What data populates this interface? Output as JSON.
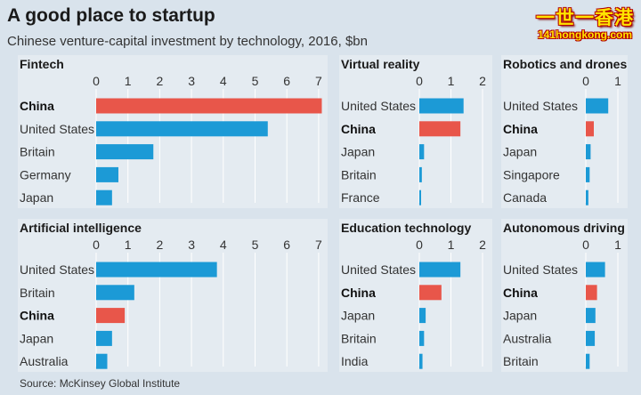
{
  "title": "A good place to startup",
  "subtitle": "Chinese venture-capital investment by technology, 2016, $bn",
  "source": "Source: McKinsey Global Institute",
  "watermark": {
    "title": "一世一香港",
    "url": "141hongkong.com"
  },
  "colors": {
    "background": "#d9e3ec",
    "panel": "#e4ebf1",
    "grid": "#ffffff",
    "bar_blue": "#1c9ad6",
    "bar_red": "#e8564a",
    "text": "#333333"
  },
  "chart_data": [
    {
      "type": "bar",
      "orientation": "horizontal",
      "title": "Fintech",
      "xlim": [
        0,
        7.1
      ],
      "ticks": [
        0,
        1,
        2,
        3,
        4,
        5,
        6,
        7
      ],
      "categories": [
        "China",
        "United States",
        "Britain",
        "Germany",
        "Japan"
      ],
      "values": [
        7.1,
        5.4,
        1.8,
        0.7,
        0.5
      ],
      "highlight": "China"
    },
    {
      "type": "bar",
      "orientation": "horizontal",
      "title": "Virtual reality",
      "xlim": [
        0,
        2
      ],
      "ticks": [
        0,
        1,
        2
      ],
      "categories": [
        "United States",
        "China",
        "Japan",
        "Britain",
        "France"
      ],
      "values": [
        1.4,
        1.3,
        0.15,
        0.08,
        0.03
      ],
      "highlight": "China"
    },
    {
      "type": "bar",
      "orientation": "horizontal",
      "title": "Robotics and drones",
      "xlim": [
        0,
        1
      ],
      "ticks": [
        0,
        1
      ],
      "categories": [
        "United States",
        "China",
        "Japan",
        "Singapore",
        "Canada"
      ],
      "values": [
        0.7,
        0.25,
        0.15,
        0.12,
        0.08
      ],
      "highlight": "China"
    },
    {
      "type": "bar",
      "orientation": "horizontal",
      "title": "Artificial intelligence",
      "xlim": [
        0,
        7.1
      ],
      "ticks": [
        0,
        1,
        2,
        3,
        4,
        5,
        6,
        7
      ],
      "categories": [
        "United States",
        "Britain",
        "China",
        "Japan",
        "Australia"
      ],
      "values": [
        3.8,
        1.2,
        0.9,
        0.5,
        0.35
      ],
      "highlight": "China"
    },
    {
      "type": "bar",
      "orientation": "horizontal",
      "title": "Education technology",
      "xlim": [
        0,
        2
      ],
      "ticks": [
        0,
        1,
        2
      ],
      "categories": [
        "United States",
        "China",
        "Japan",
        "Britain",
        "India"
      ],
      "values": [
        1.3,
        0.7,
        0.2,
        0.15,
        0.1
      ],
      "highlight": "China"
    },
    {
      "type": "bar",
      "orientation": "horizontal",
      "title": "Autonomous driving",
      "xlim": [
        0,
        1
      ],
      "ticks": [
        0,
        1
      ],
      "categories": [
        "United States",
        "China",
        "Japan",
        "Australia",
        "Britain"
      ],
      "values": [
        0.6,
        0.35,
        0.3,
        0.28,
        0.12
      ],
      "highlight": "China"
    }
  ]
}
